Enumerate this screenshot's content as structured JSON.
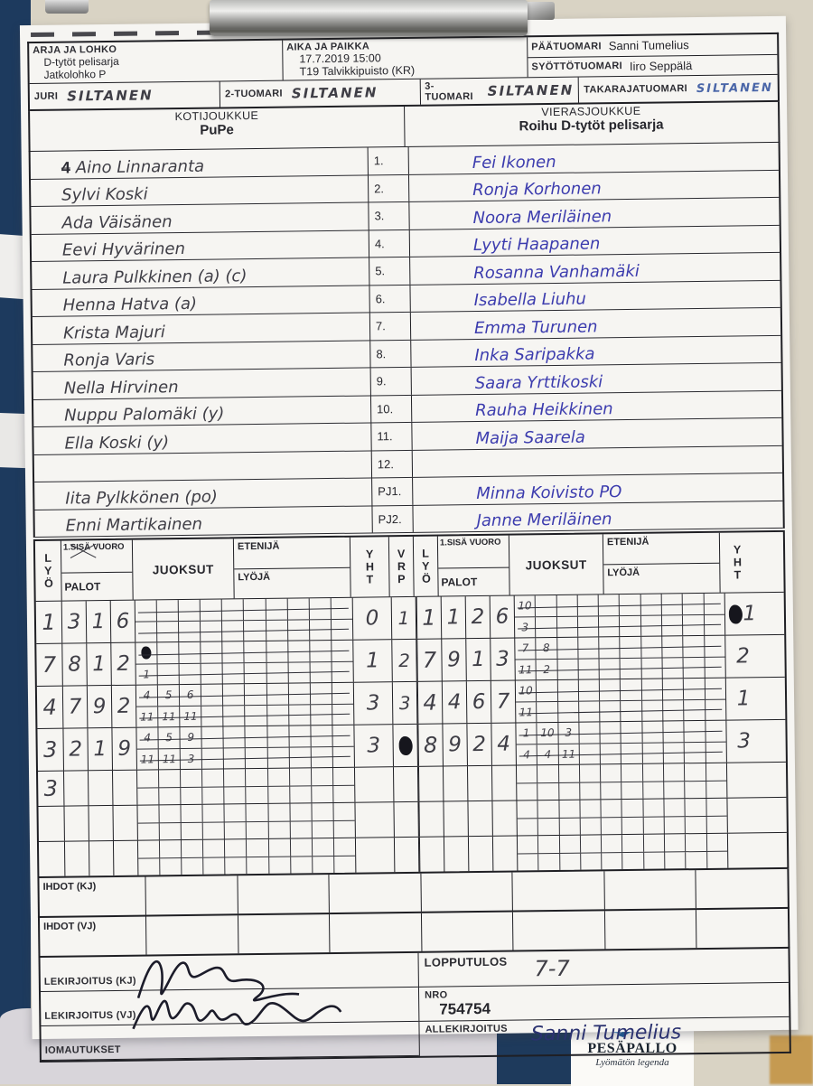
{
  "colors": {
    "pencil": "#3f3e46",
    "blue_ink": "#3c3cae",
    "navy_bg": "#1d3a5e",
    "paper": "#f6f5f2"
  },
  "header": {
    "series_label": "ARJA JA LOHKO",
    "series_line1": "D-tytöt pelisarja",
    "series_line2": "Jatkolohko P",
    "time_place_label": "AIKA JA PAIKKA",
    "time": "17.7.2019 15:00",
    "place": "T19 Talvikkipuisto (KR)",
    "head_umpire_label": "PÄÄTUOMARI",
    "head_umpire": "Sanni Tumelius",
    "pitch_umpire_label": "SYÖTTÖTUOMARI",
    "pitch_umpire": "Iiro Seppälä",
    "scorer_label": "JURI",
    "scorer": "SILTANEN",
    "umpire2_label": "2-TUOMARI",
    "umpire2": "SILTANEN",
    "umpire3_label": "3-TUOMARI",
    "umpire3": "SILTANEN",
    "backline_umpire_label": "TAKARAJATUOMARI",
    "backline_umpire": "SILTANEN"
  },
  "teams": {
    "home_label": "KOTIJOUKKUE",
    "home_name": "PuPe",
    "away_label": "VIERASJOUKKUE",
    "away_name": "Roihu D-tytöt pelisarja"
  },
  "lineup": {
    "home_prefix": "4",
    "numbers": [
      "1.",
      "2.",
      "3.",
      "4.",
      "5.",
      "6.",
      "7.",
      "8.",
      "9.",
      "10.",
      "11.",
      "12.",
      "PJ1.",
      "PJ2."
    ],
    "home": [
      "Aino Linnaranta",
      "Sylvi Koski",
      "Ada Väisänen",
      "Eevi Hyvärinen",
      "Laura Pulkkinen (a) (c)",
      "Henna Hatva (a)",
      "Krista Majuri",
      "Ronja Varis",
      "Nella Hirvinen",
      "Nuppu Palomäki (y)",
      "Ella Koski (y)",
      "",
      "Iita Pylkkönen (po)",
      "Enni Martikainen"
    ],
    "away": [
      "Fei Ikonen",
      "Ronja Korhonen",
      "Noora Meriläinen",
      "Lyyti Haapanen",
      "Rosanna Vanhamäki",
      "Isabella Liuhu",
      "Emma Turunen",
      "Inka Saripakka",
      "Saara Yrttikoski",
      "Rauha Heikkinen",
      "Maija Saarela",
      "",
      "Minna Koivisto PO",
      "Janne Meriläinen"
    ]
  },
  "scoregrid": {
    "lyo_label": "LYÖ",
    "inning_label": "1.SISÄ VUORO",
    "palot_label": "PALOT",
    "juoksut_label": "JUOKSUT",
    "etenija_label": "ETENIJÄ",
    "lyoja_label": "LYÖJÄ",
    "yht_label": "YHT",
    "vrp_label": "VRP",
    "home_rows": [
      {
        "lyo": "1",
        "palot": [
          "3",
          "1",
          "6"
        ],
        "runs": [],
        "struck": true,
        "yht": "0",
        "vrp": "1"
      },
      {
        "lyo": "7",
        "palot": [
          "8",
          "1",
          "2"
        ],
        "runs": [
          {
            "t": "",
            "b": "1",
            "tblob": true
          }
        ],
        "struck": true,
        "yht": "1",
        "vrp": "2"
      },
      {
        "lyo": "4",
        "palot": [
          "7",
          "9",
          "2"
        ],
        "runs": [
          {
            "t": "4",
            "b": "11"
          },
          {
            "t": "5",
            "b": "11"
          },
          {
            "t": "6",
            "b": "11"
          }
        ],
        "struck": true,
        "yht": "3",
        "vrp": "3"
      },
      {
        "lyo": "3",
        "palot": [
          "2",
          "1",
          "9"
        ],
        "runs": [
          {
            "t": "4",
            "b": "11"
          },
          {
            "t": "5",
            "b": "11"
          },
          {
            "t": "9",
            "b": "3"
          }
        ],
        "struck": true,
        "yht": "3",
        "vrp": "",
        "vrp_blob": true
      },
      {
        "lyo": "3",
        "palot": [
          "",
          "",
          ""
        ],
        "runs": [],
        "struck": false,
        "yht": "",
        "vrp": ""
      },
      {
        "lyo": "",
        "palot": [
          "",
          "",
          ""
        ],
        "runs": [],
        "struck": false,
        "yht": "",
        "vrp": ""
      },
      {
        "lyo": "",
        "palot": [
          "",
          "",
          ""
        ],
        "runs": [],
        "struck": false,
        "yht": "",
        "vrp": ""
      }
    ],
    "away_rows": [
      {
        "lyo": "1",
        "palot": [
          "1",
          "2",
          "6"
        ],
        "runs": [
          {
            "t": "10",
            "b": "3"
          }
        ],
        "struck": true,
        "yht": "1",
        "yht_blob": true
      },
      {
        "lyo": "7",
        "palot": [
          "9",
          "1",
          "3"
        ],
        "runs": [
          {
            "t": "7",
            "b": "11"
          },
          {
            "t": "8",
            "b": "2"
          }
        ],
        "struck": true,
        "yht": "2"
      },
      {
        "lyo": "4",
        "palot": [
          "4",
          "6",
          "7"
        ],
        "runs": [
          {
            "t": "10",
            "b": "11"
          }
        ],
        "struck": true,
        "yht": "1"
      },
      {
        "lyo": "8",
        "palot": [
          "9",
          "2",
          "4"
        ],
        "runs": [
          {
            "t": "1",
            "b": "4"
          },
          {
            "t": "10",
            "b": "4"
          },
          {
            "t": "3",
            "b": "11"
          }
        ],
        "struck": true,
        "yht": "3"
      },
      {
        "lyo": "",
        "palot": [
          "",
          "",
          ""
        ],
        "runs": [],
        "struck": false,
        "yht": ""
      },
      {
        "lyo": "",
        "palot": [
          "",
          "",
          ""
        ],
        "runs": [],
        "struck": false,
        "yht": ""
      },
      {
        "lyo": "",
        "palot": [
          "",
          "",
          ""
        ],
        "runs": [],
        "struck": false,
        "yht": ""
      }
    ]
  },
  "footer": {
    "subs_home_label": "IHDOT (KJ)",
    "subs_away_label": "IHDOT (VJ)",
    "sign_home_label": "LEKIRJOITUS (KJ)",
    "sign_away_label": "LEKIRJOITUS (VJ)",
    "remarks_label": "IOMAUTUKSET",
    "final_score_label": "LOPPUTULOS",
    "final_score": "7-7",
    "number_label": "NRO",
    "number": "754754",
    "signature_label": "ALLEKIRJOITUS",
    "signature": "Sanni Tumelius"
  },
  "logo": {
    "title": "PESÄPALLO",
    "subtitle": "Lyömätön legenda"
  }
}
